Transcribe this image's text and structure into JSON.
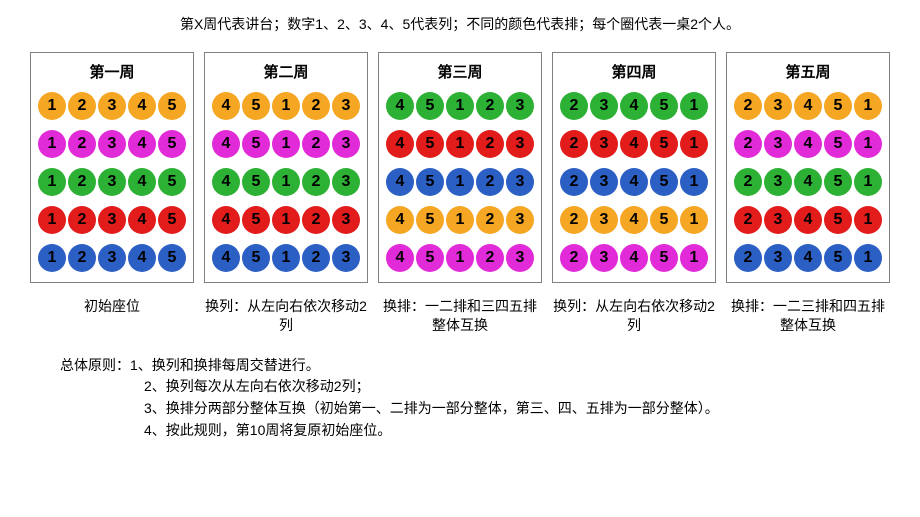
{
  "topCaption": "第X周代表讲台；数字1、2、3、4、5代表列；不同的颜色代表排；每个圈代表一桌2个人。",
  "colors": {
    "orange": "#f5a623",
    "magenta": "#e22bd8",
    "green": "#2db135",
    "red": "#e21b1b",
    "blue": "#2b5fc4",
    "text": "#000000",
    "border": "#808080",
    "bg": "#ffffff"
  },
  "circle_fontsize": 16,
  "circle_diameter": 28,
  "panels": [
    {
      "title": "第一周",
      "caption": "初始座位",
      "rows": [
        {
          "color": "orange",
          "nums": [
            1,
            2,
            3,
            4,
            5
          ]
        },
        {
          "color": "magenta",
          "nums": [
            1,
            2,
            3,
            4,
            5
          ]
        },
        {
          "color": "green",
          "nums": [
            1,
            2,
            3,
            4,
            5
          ]
        },
        {
          "color": "red",
          "nums": [
            1,
            2,
            3,
            4,
            5
          ]
        },
        {
          "color": "blue",
          "nums": [
            1,
            2,
            3,
            4,
            5
          ]
        }
      ]
    },
    {
      "title": "第二周",
      "caption": "换列：从左向右依次移动2列",
      "rows": [
        {
          "color": "orange",
          "nums": [
            4,
            5,
            1,
            2,
            3
          ]
        },
        {
          "color": "magenta",
          "nums": [
            4,
            5,
            1,
            2,
            3
          ]
        },
        {
          "color": "green",
          "nums": [
            4,
            5,
            1,
            2,
            3
          ]
        },
        {
          "color": "red",
          "nums": [
            4,
            5,
            1,
            2,
            3
          ]
        },
        {
          "color": "blue",
          "nums": [
            4,
            5,
            1,
            2,
            3
          ]
        }
      ]
    },
    {
      "title": "第三周",
      "caption": "换排：一二排和三四五排整体互换",
      "rows": [
        {
          "color": "green",
          "nums": [
            4,
            5,
            1,
            2,
            3
          ]
        },
        {
          "color": "red",
          "nums": [
            4,
            5,
            1,
            2,
            3
          ]
        },
        {
          "color": "blue",
          "nums": [
            4,
            5,
            1,
            2,
            3
          ]
        },
        {
          "color": "orange",
          "nums": [
            4,
            5,
            1,
            2,
            3
          ]
        },
        {
          "color": "magenta",
          "nums": [
            4,
            5,
            1,
            2,
            3
          ]
        }
      ]
    },
    {
      "title": "第四周",
      "caption": "换列：从左向右依次移动2列",
      "rows": [
        {
          "color": "green",
          "nums": [
            2,
            3,
            4,
            5,
            1
          ]
        },
        {
          "color": "red",
          "nums": [
            2,
            3,
            4,
            5,
            1
          ]
        },
        {
          "color": "blue",
          "nums": [
            2,
            3,
            4,
            5,
            1
          ]
        },
        {
          "color": "orange",
          "nums": [
            2,
            3,
            4,
            5,
            1
          ]
        },
        {
          "color": "magenta",
          "nums": [
            2,
            3,
            4,
            5,
            1
          ]
        }
      ]
    },
    {
      "title": "第五周",
      "caption": "换排：一二三排和四五排整体互换",
      "rows": [
        {
          "color": "orange",
          "nums": [
            2,
            3,
            4,
            5,
            1
          ]
        },
        {
          "color": "magenta",
          "nums": [
            2,
            3,
            4,
            5,
            1
          ]
        },
        {
          "color": "green",
          "nums": [
            2,
            3,
            4,
            5,
            1
          ]
        },
        {
          "color": "red",
          "nums": [
            2,
            3,
            4,
            5,
            1
          ]
        },
        {
          "color": "blue",
          "nums": [
            2,
            3,
            4,
            5,
            1
          ]
        }
      ]
    }
  ],
  "principlesLabel": "总体原则：",
  "principles": [
    "1、换列和换排每周交替进行。",
    "2、换列每次从左向右依次移动2列；",
    "3、换排分两部分整体互换（初始第一、二排为一部分整体，第三、四、五排为一部分整体）。",
    "4、按此规则，第10周将复原初始座位。"
  ]
}
